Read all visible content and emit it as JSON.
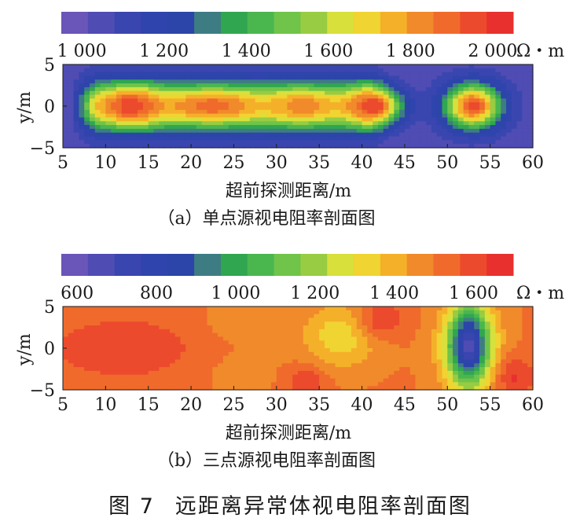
{
  "figure_caption": {
    "number": "图 7",
    "title": "远距离异常体视电阻率剖面图"
  },
  "colors": {
    "palette": [
      "#6a55b8",
      "#4f4cb4",
      "#3a46b0",
      "#2f44ac",
      "#2b45a8",
      "#3e7c84",
      "#30a650",
      "#4ab64e",
      "#6fc449",
      "#98cc42",
      "#d8e03c",
      "#f0d432",
      "#f5b02a",
      "#f08a2a",
      "#f06a2c",
      "#ec4a2c",
      "#e8302e"
    ],
    "field_min": "#2f46a9",
    "field_max": "#e9352e"
  },
  "chart_data": [
    {
      "type": "heatmap",
      "caption": "（a）单点源视电阻率剖面图",
      "xlabel": "超前探测距离/m",
      "ylabel": "y/m",
      "x_ticks": [
        "5",
        "10",
        "15",
        "20",
        "25",
        "30",
        "35",
        "40",
        "45",
        "50",
        "55",
        "60"
      ],
      "y_ticks": [
        "5",
        "0",
        "−5"
      ],
      "xlim": [
        5,
        60
      ],
      "ylim": [
        -5,
        5
      ],
      "colorbar": {
        "labels": [
          "1 000",
          "1 200",
          "1 400",
          "1 600",
          "1 800",
          "2 000"
        ],
        "label_values": [
          1000,
          1200,
          1400,
          1600,
          1800,
          2000
        ],
        "unit": "Ω・m",
        "range": [
          950,
          2050
        ]
      },
      "features": [
        {
          "type": "background",
          "value": 1020
        },
        {
          "type": "band",
          "y": 0,
          "sigma": 5.2,
          "x_from": 6,
          "x_to": 43.5,
          "value": 1700
        },
        {
          "type": "blob",
          "x": 13,
          "y": 0,
          "sx": 3.3,
          "sy": 2.2,
          "value": 2000
        },
        {
          "type": "blob",
          "x": 22.5,
          "y": 0,
          "sx": 4.8,
          "sy": 1.7,
          "value": 1920
        },
        {
          "type": "blob",
          "x": 33,
          "y": 0,
          "sx": 3.5,
          "sy": 1.8,
          "value": 1850
        },
        {
          "type": "blob",
          "x": 41.5,
          "y": 0,
          "sx": 3.0,
          "sy": 2.2,
          "value": 2000
        },
        {
          "type": "blob",
          "x": 53,
          "y": 0,
          "sx": 3.2,
          "sy": 2.6,
          "value": 1990
        }
      ]
    },
    {
      "type": "heatmap",
      "caption": "（b）三点源视电阻率剖面图",
      "xlabel": "超前探测距离/m",
      "ylabel": "y/m",
      "x_ticks": [
        "5",
        "10",
        "15",
        "20",
        "25",
        "30",
        "35",
        "40",
        "45",
        "50",
        "55",
        "60"
      ],
      "y_ticks": [
        "5",
        "0",
        "−5"
      ],
      "xlim": [
        5,
        60
      ],
      "ylim": [
        -5,
        5
      ],
      "colorbar": {
        "labels": [
          "600",
          "800",
          "1 000",
          "1 200",
          "1 400",
          "1 600"
        ],
        "label_values": [
          600,
          800,
          1000,
          1200,
          1400,
          1600
        ],
        "unit": "Ω・m",
        "range": [
          560,
          1700
        ]
      },
      "features": [
        {
          "type": "background",
          "value": 1530
        },
        {
          "type": "blob",
          "x": 12,
          "y": 0,
          "sx": 9,
          "sy": 4.0,
          "value": 1650
        },
        {
          "type": "blob",
          "x": 26,
          "y": 3.5,
          "sx": 3.8,
          "sy": 2.8,
          "value": 1470
        },
        {
          "type": "blob",
          "x": 26,
          "y": -3.2,
          "sx": 3.5,
          "sy": 2.5,
          "value": 1480
        },
        {
          "type": "blob",
          "x": 37.5,
          "y": 1.5,
          "sx": 4.5,
          "sy": 3.8,
          "value": 1330
        },
        {
          "type": "blob",
          "x": 42.5,
          "y": 3.5,
          "sx": 2.7,
          "sy": 2.3,
          "value": 1650
        },
        {
          "type": "blob",
          "x": 33.5,
          "y": -4.2,
          "sx": 2.2,
          "sy": 2.0,
          "value": 1650
        },
        {
          "type": "blob",
          "x": 52.5,
          "y": 0,
          "sx": 3.8,
          "sy": 6.0,
          "value": 1350
        },
        {
          "type": "blob",
          "x": 52.5,
          "y": 0.3,
          "sx": 2.3,
          "sy": 4.4,
          "value": 640
        },
        {
          "type": "blob",
          "x": 58,
          "y": -3.5,
          "sx": 2.2,
          "sy": 2.5,
          "value": 1670
        }
      ]
    }
  ]
}
